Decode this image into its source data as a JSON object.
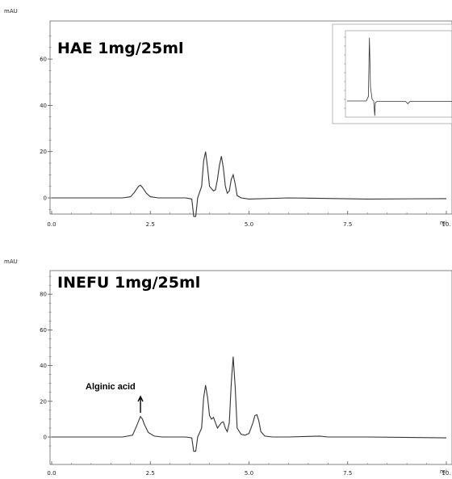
{
  "chart_data": [
    {
      "type": "line",
      "title": "HAE 1mg/25ml",
      "ylabel": "mAU",
      "xunit": "mi",
      "xlim": [
        0,
        10
      ],
      "ylim": [
        -7,
        70
      ],
      "xticks": [
        0.0,
        2.5,
        5.0,
        7.5,
        10.0
      ],
      "xtick_labels": [
        "0.0",
        "2.5",
        "5.0",
        "7.5",
        "10."
      ],
      "yticks": [
        0,
        20,
        40,
        60
      ],
      "ytick_labels": [
        "0",
        "20",
        "40",
        "60"
      ],
      "series": [
        {
          "x": [
            0.0,
            1.8,
            2.0,
            2.1,
            2.2,
            2.25,
            2.3,
            2.4,
            2.5,
            2.7,
            3.4,
            3.55,
            3.6,
            3.65,
            3.7,
            3.8,
            3.85,
            3.9,
            3.95,
            4.0,
            4.1,
            4.15,
            4.2,
            4.25,
            4.3,
            4.35,
            4.4,
            4.45,
            4.5,
            4.55,
            4.6,
            4.65,
            4.7,
            4.8,
            5.0,
            6.0,
            8.0,
            10.0
          ],
          "y": [
            0,
            0,
            0.5,
            2.5,
            5,
            5.5,
            4.5,
            2,
            0.5,
            0,
            0,
            -0.5,
            -8,
            -8,
            0,
            5,
            16,
            20,
            13,
            5,
            3,
            3.5,
            8,
            14,
            18,
            13,
            5,
            2,
            3,
            8,
            10,
            6,
            1,
            0,
            -0.5,
            0,
            -0.5,
            -0.3
          ]
        }
      ],
      "inset": {
        "type": "line",
        "series": [
          {
            "x": [
              0,
              1.8,
              2.0,
              2.05,
              2.1,
              2.2,
              2.35,
              2.5,
              2.6,
              2.65,
              2.8,
              3.5,
              5.5,
              5.7,
              5.9,
              7.0,
              10.0
            ],
            "y": [
              0,
              0,
              0.5,
              4,
              6.8,
              1.5,
              0.2,
              0,
              -1.6,
              -0.2,
              -0.05,
              -0.05,
              -0.05,
              -0.3,
              -0.05,
              -0.05,
              -0.05
            ]
          }
        ]
      }
    },
    {
      "type": "line",
      "title": "INEFU 1mg/25ml",
      "ylabel": "mAU",
      "xunit": "mi",
      "xlim": [
        0,
        10
      ],
      "ylim": [
        -8,
        90
      ],
      "xticks": [
        0.0,
        2.5,
        5.0,
        7.5,
        10.0
      ],
      "xtick_labels": [
        "0.0",
        "2.5",
        "5.0",
        "7.5",
        "10."
      ],
      "yticks": [
        0,
        20,
        40,
        60,
        80
      ],
      "ytick_labels": [
        "0",
        "20",
        "40",
        "60",
        "80"
      ],
      "annotations": [
        {
          "text": "Alginic acid",
          "x": 2.25,
          "y": 12
        }
      ],
      "series": [
        {
          "x": [
            0.0,
            1.8,
            2.05,
            2.15,
            2.25,
            2.3,
            2.35,
            2.45,
            2.6,
            2.8,
            3.4,
            3.55,
            3.6,
            3.65,
            3.7,
            3.8,
            3.85,
            3.9,
            3.95,
            4.0,
            4.05,
            4.1,
            4.15,
            4.2,
            4.3,
            4.35,
            4.4,
            4.45,
            4.5,
            4.55,
            4.6,
            4.65,
            4.7,
            4.8,
            4.9,
            5.0,
            5.1,
            5.15,
            5.2,
            5.25,
            5.3,
            5.4,
            5.6,
            6.0,
            6.8,
            7.0,
            8.0,
            10.0
          ],
          "y": [
            0,
            0,
            1,
            6,
            11.5,
            10,
            7,
            2.5,
            0.5,
            0,
            0,
            -0.5,
            -8,
            -8,
            0,
            5,
            22,
            29,
            22,
            12,
            10,
            11,
            8,
            5,
            8,
            8.5,
            5,
            3,
            8,
            30,
            45,
            28,
            5,
            1.5,
            1,
            2,
            8,
            12,
            12.5,
            9,
            3,
            0.5,
            0,
            0,
            0.5,
            0,
            0,
            -0.5
          ]
        }
      ]
    }
  ]
}
